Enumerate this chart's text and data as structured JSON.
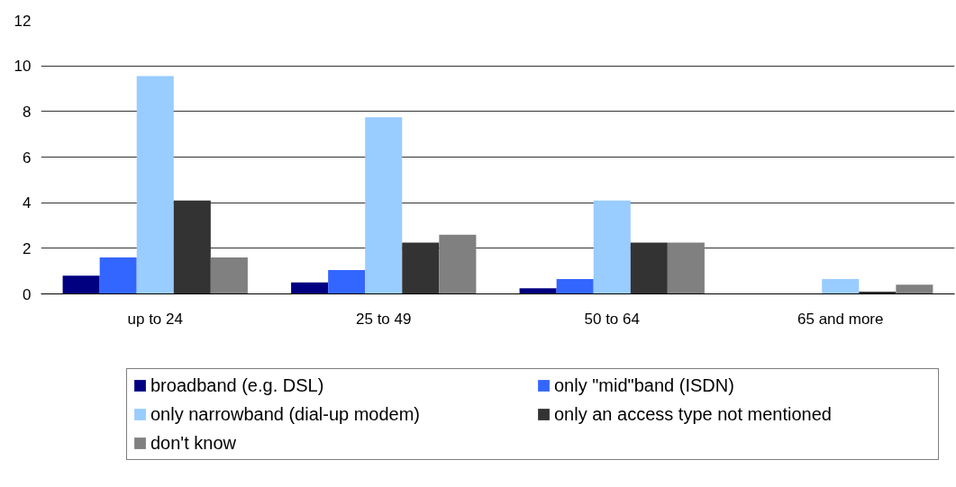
{
  "chart_data": {
    "type": "bar",
    "categories": [
      "up to 24",
      "25 to 49",
      "50 to 64",
      "65 and more"
    ],
    "series": [
      {
        "name": "broadband (e.g. DSL)",
        "color": "#000080",
        "values": [
          0.8,
          0.5,
          0.25,
          0
        ]
      },
      {
        "name": "only \"mid\"band (ISDN)",
        "color": "#3366ff",
        "values": [
          1.6,
          1.05,
          0.65,
          0
        ]
      },
      {
        "name": "only narrowband (dial-up modem)",
        "color": "#99ccff",
        "values": [
          9.55,
          7.75,
          4.1,
          0.65
        ]
      },
      {
        "name": "only an access type not mentioned",
        "color": "#333333",
        "values": [
          4.1,
          2.25,
          2.25,
          0.1
        ]
      },
      {
        "name": "don't know",
        "color": "#808080",
        "values": [
          1.6,
          2.6,
          2.25,
          0.4
        ]
      }
    ],
    "ylim": [
      0,
      12
    ],
    "yticks": [
      0,
      2,
      4,
      6,
      8,
      10,
      12
    ],
    "grid": "y",
    "legend": "bottom"
  }
}
